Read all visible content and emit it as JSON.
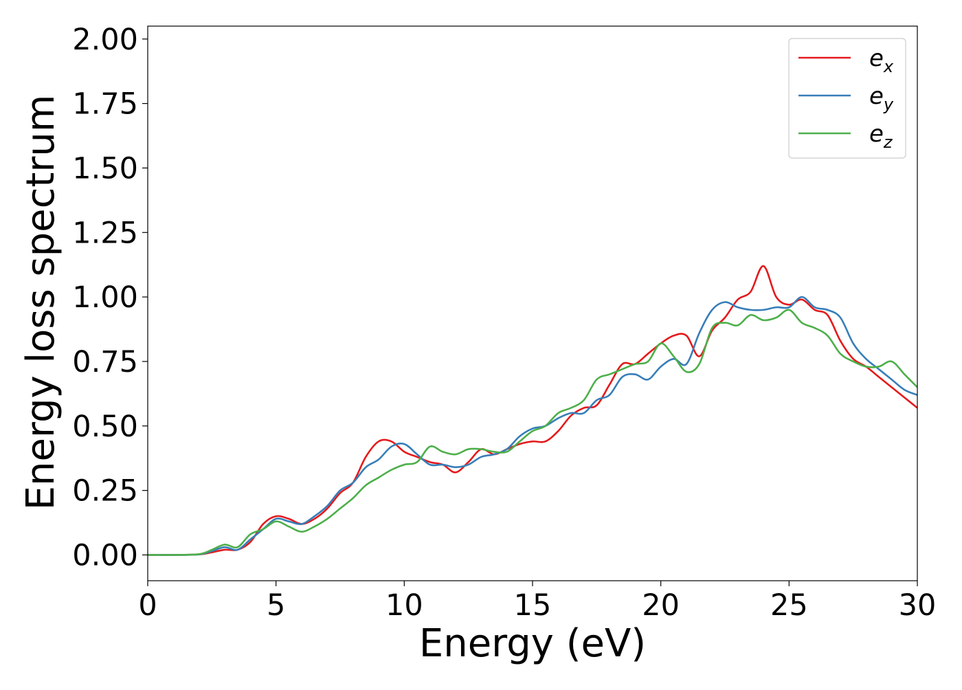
{
  "chart_data": {
    "type": "line",
    "xlabel": "Energy (eV)",
    "ylabel": "Energy loss spectrum",
    "xlim": [
      0,
      30
    ],
    "ylim": [
      -0.1,
      2.05
    ],
    "x_ticks": [
      "0",
      "5",
      "10",
      "15",
      "20",
      "25",
      "30"
    ],
    "y_ticks": [
      "0.00",
      "0.25",
      "0.50",
      "0.75",
      "1.00",
      "1.25",
      "1.50",
      "1.75",
      "2.00"
    ],
    "grid": false,
    "legend_position": "top-right",
    "series": [
      {
        "name": "e_x",
        "legend_base": "e",
        "legend_sub": "x",
        "color": "#e41a1c",
        "x": [
          0,
          1,
          2,
          2.5,
          3,
          3.5,
          4,
          4.5,
          5,
          5.5,
          6,
          6.5,
          7,
          7.5,
          8,
          8.5,
          9,
          9.5,
          10,
          10.5,
          11,
          11.5,
          12,
          12.5,
          13,
          13.5,
          14,
          14.5,
          15,
          15.5,
          16,
          16.5,
          17,
          17.5,
          18,
          18.5,
          19,
          19.5,
          20,
          20.5,
          21,
          21.5,
          22,
          22.5,
          23,
          23.5,
          24,
          24.5,
          25,
          25.5,
          26,
          26.5,
          27,
          27.5,
          28,
          28.5,
          29,
          29.5,
          30
        ],
        "values": [
          0,
          0,
          0.002,
          0.01,
          0.02,
          0.02,
          0.05,
          0.12,
          0.15,
          0.14,
          0.12,
          0.14,
          0.18,
          0.24,
          0.28,
          0.38,
          0.44,
          0.44,
          0.4,
          0.38,
          0.36,
          0.35,
          0.32,
          0.36,
          0.41,
          0.39,
          0.41,
          0.43,
          0.44,
          0.44,
          0.48,
          0.54,
          0.57,
          0.58,
          0.66,
          0.74,
          0.74,
          0.78,
          0.82,
          0.85,
          0.85,
          0.77,
          0.87,
          0.92,
          0.99,
          1.02,
          1.12,
          1.0,
          0.97,
          0.99,
          0.95,
          0.93,
          0.83,
          0.76,
          0.73,
          0.69,
          0.65,
          0.61,
          0.57
        ]
      },
      {
        "name": "e_y",
        "legend_base": "e",
        "legend_sub": "y",
        "color": "#377eb8",
        "x": [
          0,
          1,
          2,
          2.5,
          3,
          3.5,
          4,
          4.5,
          5,
          5.5,
          6,
          6.5,
          7,
          7.5,
          8,
          8.5,
          9,
          9.5,
          10,
          10.5,
          11,
          11.5,
          12,
          12.5,
          13,
          13.5,
          14,
          14.5,
          15,
          15.5,
          16,
          16.5,
          17,
          17.5,
          18,
          18.5,
          19,
          19.5,
          20,
          20.5,
          21,
          21.5,
          22,
          22.5,
          23,
          23.5,
          24,
          24.5,
          25,
          25.5,
          26,
          26.5,
          27,
          27.5,
          28,
          28.5,
          29,
          29.5,
          30
        ],
        "values": [
          0,
          0,
          0.002,
          0.015,
          0.03,
          0.02,
          0.06,
          0.1,
          0.14,
          0.13,
          0.12,
          0.15,
          0.19,
          0.25,
          0.28,
          0.34,
          0.37,
          0.42,
          0.43,
          0.39,
          0.35,
          0.35,
          0.34,
          0.35,
          0.38,
          0.39,
          0.41,
          0.46,
          0.49,
          0.5,
          0.53,
          0.55,
          0.55,
          0.6,
          0.62,
          0.69,
          0.7,
          0.68,
          0.73,
          0.76,
          0.74,
          0.86,
          0.95,
          0.98,
          0.96,
          0.95,
          0.95,
          0.96,
          0.96,
          1.0,
          0.96,
          0.95,
          0.92,
          0.82,
          0.76,
          0.72,
          0.68,
          0.64,
          0.62
        ]
      },
      {
        "name": "e_z",
        "legend_base": "e",
        "legend_sub": "z",
        "color": "#4daf4a",
        "x": [
          0,
          1,
          2,
          2.5,
          3,
          3.5,
          4,
          4.5,
          5,
          5.5,
          6,
          6.5,
          7,
          7.5,
          8,
          8.5,
          9,
          9.5,
          10,
          10.5,
          11,
          11.5,
          12,
          12.5,
          13,
          13.5,
          14,
          14.5,
          15,
          15.5,
          16,
          16.5,
          17,
          17.5,
          18,
          18.5,
          19,
          19.5,
          20,
          20.5,
          21,
          21.5,
          22,
          22.5,
          23,
          23.5,
          24,
          24.5,
          25,
          25.5,
          26,
          26.5,
          27,
          27.5,
          28,
          28.5,
          29,
          29.5,
          30
        ],
        "values": [
          0,
          0,
          0.003,
          0.02,
          0.04,
          0.03,
          0.08,
          0.1,
          0.13,
          0.11,
          0.09,
          0.11,
          0.14,
          0.18,
          0.22,
          0.27,
          0.3,
          0.33,
          0.35,
          0.36,
          0.42,
          0.4,
          0.39,
          0.41,
          0.41,
          0.4,
          0.4,
          0.44,
          0.48,
          0.5,
          0.55,
          0.57,
          0.6,
          0.68,
          0.7,
          0.72,
          0.74,
          0.75,
          0.82,
          0.77,
          0.71,
          0.74,
          0.88,
          0.9,
          0.89,
          0.93,
          0.91,
          0.92,
          0.95,
          0.9,
          0.88,
          0.85,
          0.78,
          0.75,
          0.73,
          0.73,
          0.75,
          0.7,
          0.65
        ]
      }
    ]
  }
}
